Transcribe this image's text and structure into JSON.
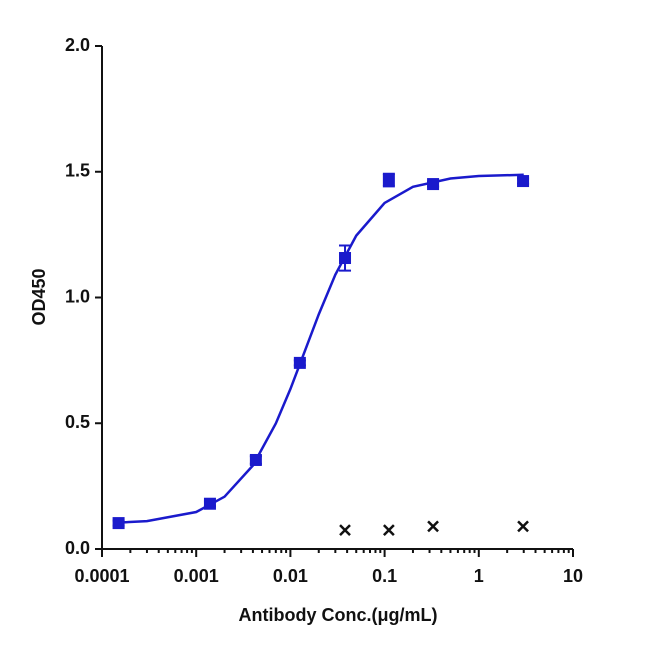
{
  "chart_data": {
    "type": "scatter",
    "xlabel": "Antibody Conc.(μg/mL)",
    "ylabel": "OD450",
    "xscale": "log",
    "xlim": [
      0.0001,
      10
    ],
    "xticks": [
      0.0001,
      0.001,
      0.01,
      0.1,
      1,
      10
    ],
    "ylim": [
      0,
      2
    ],
    "yticks": [
      {
        "value": 0,
        "label": "0.0"
      },
      0.5,
      {
        "value": 1,
        "label": "1.0"
      },
      1.5,
      {
        "value": 2,
        "label": "2.0"
      }
    ],
    "series": [
      {
        "style": "line",
        "color": "#1a1acc",
        "x": [
          0.00015,
          0.0003,
          0.001,
          0.002,
          0.004,
          0.007,
          0.01,
          0.0145,
          0.02,
          0.03,
          0.05,
          0.1,
          0.2,
          0.5,
          1,
          3
        ],
        "values": [
          0.105,
          0.111,
          0.147,
          0.208,
          0.332,
          0.499,
          0.636,
          0.795,
          0.933,
          1.091,
          1.246,
          1.376,
          1.44,
          1.473,
          1.483,
          1.488
        ]
      },
      {
        "style": "square",
        "color": "#1a1acc",
        "x": [
          0.00015,
          0.0014,
          0.0043,
          0.0126,
          0.038,
          0.111,
          0.327,
          2.95
        ],
        "values": [
          0.103,
          0.18,
          0.354,
          0.74,
          1.157,
          1.467,
          1.451,
          1.463
        ],
        "errors": [
          0.01,
          0.01,
          0.015,
          0.01,
          0.05,
          0.025,
          0.01,
          0.01
        ]
      },
      {
        "style": "cross",
        "color": "#111111",
        "x": [
          0.038,
          0.111,
          0.327,
          2.95
        ],
        "values": [
          0.075,
          0.075,
          0.09,
          0.09
        ]
      }
    ]
  }
}
